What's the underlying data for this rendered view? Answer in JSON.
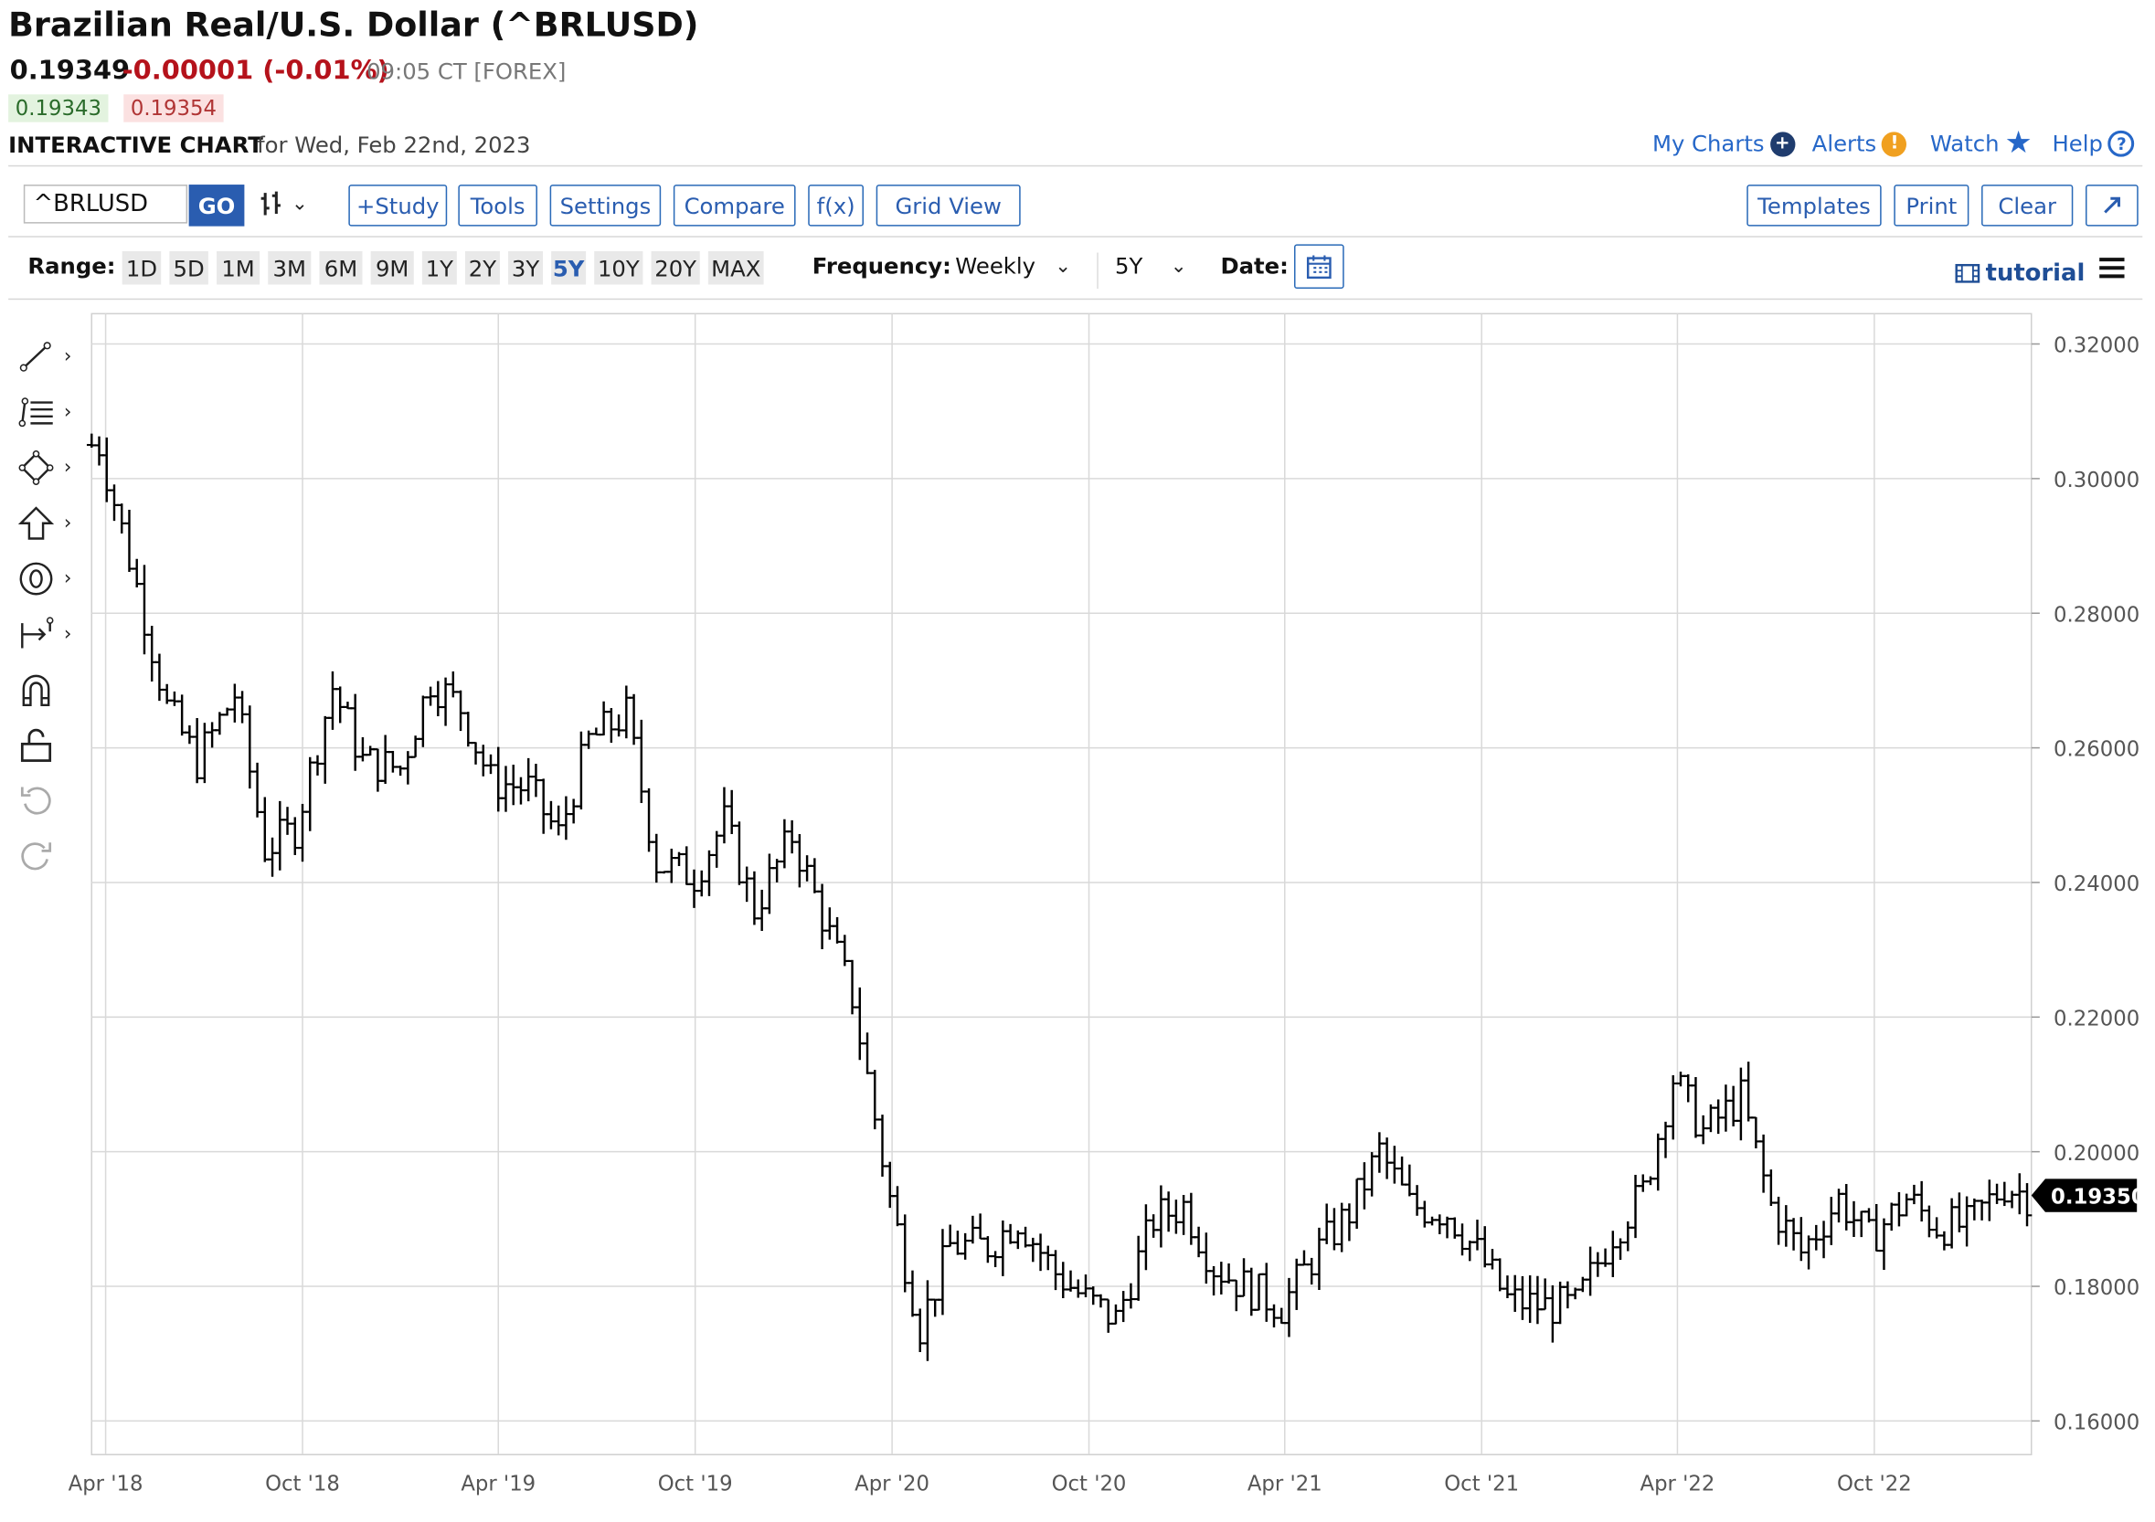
{
  "header": {
    "title": "Brazilian Real/U.S. Dollar (^BRLUSD)",
    "last": "0.19349",
    "change": "-0.00001 (-0.01%)",
    "time": "09:05 CT [FOREX]",
    "bid": "0.19343",
    "ask": "0.19354",
    "chart_label": "INTERACTIVE CHART",
    "chart_date": "for Wed, Feb 22nd, 2023"
  },
  "top_links": {
    "my_charts": "My Charts",
    "alerts": "Alerts",
    "watch": "Watch",
    "help": "Help"
  },
  "toolbar": {
    "symbol": "^BRLUSD",
    "go": "GO",
    "study": "+Study",
    "tools": "Tools",
    "settings": "Settings",
    "compare": "Compare",
    "fx": "f(x)",
    "grid_view": "Grid View",
    "templates": "Templates",
    "print": "Print",
    "clear": "Clear"
  },
  "range": {
    "label": "Range:",
    "options": [
      "1D",
      "5D",
      "1M",
      "3M",
      "6M",
      "9M",
      "1Y",
      "2Y",
      "3Y",
      "5Y",
      "10Y",
      "20Y",
      "MAX"
    ],
    "active": "5Y",
    "frequency_label": "Frequency:",
    "frequency": "Weekly",
    "period": "5Y",
    "date_label": "Date:",
    "tutorial": "tutorial"
  },
  "colors": {
    "accent": "#2a5db0",
    "negative": "#b5121b",
    "bars": "#000000",
    "grid": "#d9d9d9"
  },
  "icons": [
    "line-tool-icon",
    "fib-tool-icon",
    "shape-tool-icon",
    "arrow-up-icon",
    "price-label-icon",
    "measure-icon",
    "magnet-icon",
    "unlock-icon",
    "undo-icon",
    "redo-icon"
  ],
  "chart_data": {
    "type": "ohlc",
    "frequency": "weekly",
    "ylim": [
      0.155,
      0.3245
    ],
    "y_ticks": [
      "0.32000",
      "0.30000",
      "0.28000",
      "0.26000",
      "0.24000",
      "0.22000",
      "0.20000",
      "0.18000",
      "0.16000"
    ],
    "x_ticks": [
      "Apr '18",
      "Oct '18",
      "Apr '19",
      "Oct '19",
      "Apr '20",
      "Oct '20",
      "Apr '21",
      "Oct '21",
      "Apr '22",
      "Oct '22"
    ],
    "x_range": [
      "2018-03-19",
      "2023-02-24"
    ],
    "last_price_label": "0.19350",
    "grid": true,
    "series_monthly_close": [
      {
        "date": "2018-03-26",
        "close": 0.305
      },
      {
        "date": "2018-04-30",
        "close": 0.284
      },
      {
        "date": "2018-05-28",
        "close": 0.266
      },
      {
        "date": "2018-06-25",
        "close": 0.258
      },
      {
        "date": "2018-07-30",
        "close": 0.268
      },
      {
        "date": "2018-08-27",
        "close": 0.245
      },
      {
        "date": "2018-09-24",
        "close": 0.248
      },
      {
        "date": "2018-10-29",
        "close": 0.269
      },
      {
        "date": "2018-11-26",
        "close": 0.258
      },
      {
        "date": "2018-12-31",
        "close": 0.257
      },
      {
        "date": "2019-01-28",
        "close": 0.27
      },
      {
        "date": "2019-02-25",
        "close": 0.266
      },
      {
        "date": "2019-03-25",
        "close": 0.255
      },
      {
        "date": "2019-04-29",
        "close": 0.254
      },
      {
        "date": "2019-05-27",
        "close": 0.247
      },
      {
        "date": "2019-06-24",
        "close": 0.261
      },
      {
        "date": "2019-07-29",
        "close": 0.265
      },
      {
        "date": "2019-08-26",
        "close": 0.243
      },
      {
        "date": "2019-09-30",
        "close": 0.241
      },
      {
        "date": "2019-10-28",
        "close": 0.249
      },
      {
        "date": "2019-11-25",
        "close": 0.236
      },
      {
        "date": "2019-12-30",
        "close": 0.247
      },
      {
        "date": "2020-01-27",
        "close": 0.235
      },
      {
        "date": "2020-02-24",
        "close": 0.223
      },
      {
        "date": "2020-03-30",
        "close": 0.193
      },
      {
        "date": "2020-04-27",
        "close": 0.174
      },
      {
        "date": "2020-05-25",
        "close": 0.186
      },
      {
        "date": "2020-06-29",
        "close": 0.186
      },
      {
        "date": "2020-07-27",
        "close": 0.19
      },
      {
        "date": "2020-08-31",
        "close": 0.182
      },
      {
        "date": "2020-09-28",
        "close": 0.178
      },
      {
        "date": "2020-10-26",
        "close": 0.175
      },
      {
        "date": "2020-11-30",
        "close": 0.19
      },
      {
        "date": "2020-12-28",
        "close": 0.192
      },
      {
        "date": "2021-01-25",
        "close": 0.183
      },
      {
        "date": "2021-02-22",
        "close": 0.18
      },
      {
        "date": "2021-03-29",
        "close": 0.177
      },
      {
        "date": "2021-04-26",
        "close": 0.184
      },
      {
        "date": "2021-05-31",
        "close": 0.191
      },
      {
        "date": "2021-06-28",
        "close": 0.2
      },
      {
        "date": "2021-07-26",
        "close": 0.192
      },
      {
        "date": "2021-08-30",
        "close": 0.191
      },
      {
        "date": "2021-09-27",
        "close": 0.185
      },
      {
        "date": "2021-10-25",
        "close": 0.178
      },
      {
        "date": "2021-11-29",
        "close": 0.177
      },
      {
        "date": "2021-12-27",
        "close": 0.177
      },
      {
        "date": "2022-01-31",
        "close": 0.188
      },
      {
        "date": "2022-02-28",
        "close": 0.194
      },
      {
        "date": "2022-03-28",
        "close": 0.211
      },
      {
        "date": "2022-04-25",
        "close": 0.203
      },
      {
        "date": "2022-05-30",
        "close": 0.208
      },
      {
        "date": "2022-06-27",
        "close": 0.192
      },
      {
        "date": "2022-07-25",
        "close": 0.185
      },
      {
        "date": "2022-08-29",
        "close": 0.193
      },
      {
        "date": "2022-09-26",
        "close": 0.187
      },
      {
        "date": "2022-10-31",
        "close": 0.193
      },
      {
        "date": "2022-11-28",
        "close": 0.189
      },
      {
        "date": "2022-12-26",
        "close": 0.189
      },
      {
        "date": "2023-01-30",
        "close": 0.195
      },
      {
        "date": "2023-02-20",
        "close": 0.1935
      }
    ]
  }
}
